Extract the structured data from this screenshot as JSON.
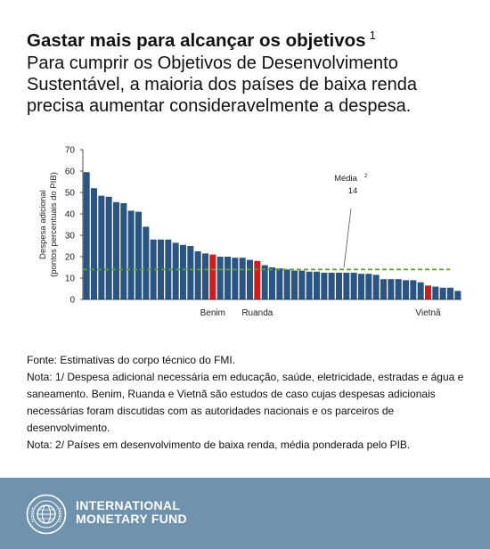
{
  "header": {
    "title": "Gastar mais para alcançar os objetivos",
    "title_note": "1",
    "subtitle": "Para cumprir os Objetivos de Desenvolvimento Sustentável, a maioria dos países de baixa renda precisa aumentar consideravelmente a despesa."
  },
  "chart_data": {
    "type": "bar",
    "ylabel": "Despesa adicional (pontos percentuais do PIB)",
    "ylim": [
      0,
      70
    ],
    "yticks": [
      0,
      10,
      20,
      30,
      40,
      50,
      60,
      70
    ],
    "grid": false,
    "values": [
      59.5,
      52,
      48.5,
      48,
      45.5,
      45,
      41.5,
      41,
      34,
      28,
      28,
      28,
      26.5,
      25.5,
      25,
      22.5,
      21.5,
      21,
      20,
      20,
      19.5,
      19.5,
      18.5,
      18,
      16,
      15,
      14.5,
      14,
      13.5,
      13.5,
      13,
      13,
      12.5,
      12.5,
      12.5,
      12.5,
      12.5,
      12,
      12,
      11.5,
      9.5,
      9.5,
      9.5,
      9,
      9,
      8,
      6.5,
      6,
      5.5,
      5.5,
      4
    ],
    "highlighted": [
      {
        "index": 17,
        "label": "Benim"
      },
      {
        "index": 23,
        "label": "Ruanda"
      },
      {
        "index": 46,
        "label": "Vietnã"
      }
    ],
    "average": {
      "value": 14,
      "label": "Média",
      "label_note": "2",
      "value_label": "14"
    },
    "colors": {
      "bar": "#2a5482",
      "highlight": "#d01c1f",
      "average_line": "#5aa02c",
      "axis": "#222222"
    }
  },
  "notes": {
    "source": "Fonte: Estimativas do corpo técnico do FMI.",
    "note1": "Nota: 1/ Despesa adicional necessária em educação, saúde, eletricidade, estradas e água e saneamento. Benim, Ruanda e Vietnã são estudos de caso cujas despesas adicionais necessárias foram discutidas com as autoridades nacionais e os parceiros de desenvolvimento.",
    "note2": "Nota: 2/ Países em desenvolvimento de baixa renda, média ponderada pelo PIB."
  },
  "footer": {
    "org_line1": "INTERNATIONAL",
    "org_line2": "MONETARY FUND",
    "logo_icon": "imf-seal-icon",
    "background": "#6f93ad"
  }
}
